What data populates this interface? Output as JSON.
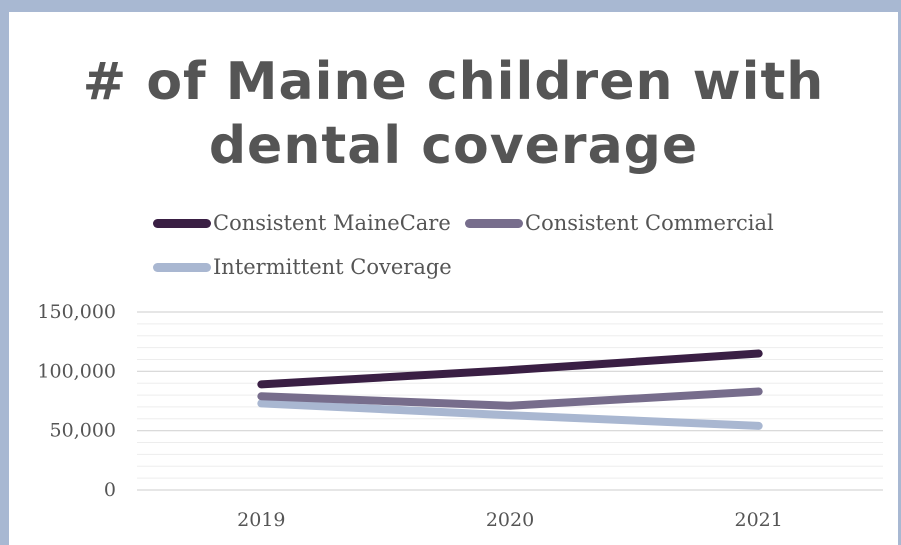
{
  "chart_data": {
    "type": "line",
    "title": "# of Maine children with dental coverage",
    "categories": [
      "2019",
      "2020",
      "2021"
    ],
    "series": [
      {
        "name": "Consistent MaineCare",
        "values": [
          89000,
          101000,
          115000
        ],
        "color": "#3a1f44"
      },
      {
        "name": "Consistent Commercial",
        "values": [
          79000,
          71000,
          83000
        ],
        "color": "#776d8c"
      },
      {
        "name": "Intermittent Coverage",
        "values": [
          73000,
          63000,
          54000
        ],
        "color": "#a9b7d1"
      }
    ],
    "ylim": [
      0,
      150000
    ],
    "yticks": [
      0,
      50000,
      100000,
      150000
    ],
    "ytick_labels": [
      "0",
      "50,000",
      "100,000",
      "150,000"
    ],
    "legend": "top",
    "grid": true
  }
}
